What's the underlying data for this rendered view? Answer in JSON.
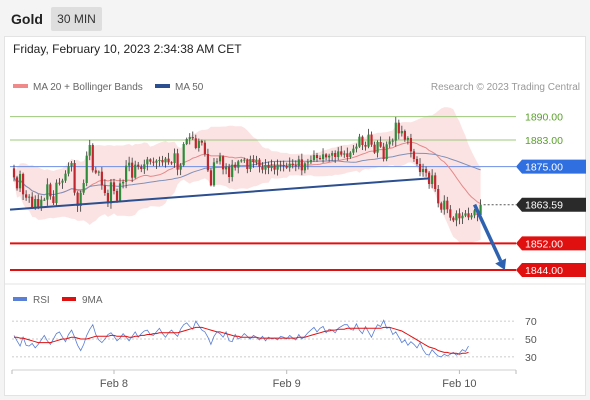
{
  "header": {
    "symbol": "Gold",
    "timeframe": "30 MIN",
    "timestamp": "Friday, February 10, 2023 2:34:38 AM CET"
  },
  "legend": {
    "ma20": {
      "label": "MA 20 + Bollinger Bands",
      "color": "#f08a8a"
    },
    "ma50": {
      "label": "MA 50",
      "color": "#2b4f8f"
    },
    "credit": "Research © 2023 Trading Central"
  },
  "rsi_legend": {
    "rsi": {
      "label": "RSI",
      "color": "#5a7fd6"
    },
    "ma9": {
      "label": "9MA",
      "color": "#e01010"
    }
  },
  "chart_data": [
    {
      "type": "candlestick",
      "title": "",
      "ylim": [
        1838,
        1895
      ],
      "x_ticks": [
        "Feb 8",
        "Feb 9",
        "Feb 10"
      ],
      "price_levels": [
        {
          "label": "1890.00",
          "value": 1890.0,
          "kind": "resistance",
          "color": "#5aa02c"
        },
        {
          "label": "1883.00",
          "value": 1883.0,
          "kind": "resistance",
          "color": "#5aa02c"
        },
        {
          "label": "1875.00",
          "value": 1875.0,
          "kind": "pivot",
          "color": "#2f6fe0"
        },
        {
          "label": "1863.59",
          "value": 1863.59,
          "kind": "last-price",
          "color": "#2a2a2a"
        },
        {
          "label": "1852.00",
          "value": 1852.0,
          "kind": "support",
          "color": "#e01010"
        },
        {
          "label": "1844.00",
          "value": 1844.0,
          "kind": "support",
          "color": "#e01010"
        }
      ],
      "trendline": {
        "start": {
          "bar": 0,
          "price": 1862.1
        },
        "end": {
          "bar": 137,
          "price": 1871.5
        }
      },
      "forecast_arrow": {
        "start": {
          "bar": 152,
          "price": 1863.6
        },
        "end": {
          "bar": 162,
          "price": 1844.0
        }
      },
      "candles": [
        [
          1874.5,
          1871.8
        ],
        [
          1871.8,
          1868.5
        ],
        [
          1868.5,
          1872.8
        ],
        [
          1872.8,
          1866.7
        ],
        [
          1866.7,
          1865.7
        ],
        [
          1865.7,
          1866.0
        ],
        [
          1866.0,
          1862.7
        ],
        [
          1862.7,
          1865.3
        ],
        [
          1865.3,
          1862.8
        ],
        [
          1862.8,
          1865.1
        ],
        [
          1865.1,
          1865.1
        ],
        [
          1865.1,
          1869.7
        ],
        [
          1869.7,
          1866.1
        ],
        [
          1866.1,
          1864.1
        ],
        [
          1864.1,
          1870.2
        ],
        [
          1870.2,
          1870.1
        ],
        [
          1870.2,
          1870.8
        ],
        [
          1870.8,
          1872.9
        ],
        [
          1872.9,
          1875.1
        ],
        [
          1875.1,
          1876.1
        ],
        [
          1876.1,
          1867.2
        ],
        [
          1867.2,
          1863.2
        ],
        [
          1863.2,
          1867.2
        ],
        [
          1867.2,
          1870.1
        ],
        [
          1870.1,
          1878.3
        ],
        [
          1878.3,
          1881.5
        ],
        [
          1881.5,
          1873.9
        ],
        [
          1873.9,
          1873.2
        ],
        [
          1873.2,
          1873.5
        ],
        [
          1873.5,
          1869.4
        ],
        [
          1869.4,
          1867.1
        ],
        [
          1867.1,
          1864.0
        ],
        [
          1864.0,
          1870.3
        ],
        [
          1870.3,
          1867.7
        ],
        [
          1867.7,
          1864.8
        ],
        [
          1864.8,
          1870.0
        ],
        [
          1870.0,
          1870.4
        ],
        [
          1870.4,
          1875.3
        ],
        [
          1875.3,
          1876.2
        ],
        [
          1876.2,
          1871.7
        ],
        [
          1871.7,
          1875.6
        ],
        [
          1875.6,
          1875.0
        ],
        [
          1875.0,
          1874.3
        ],
        [
          1874.3,
          1875.7
        ],
        [
          1875.7,
          1877.2
        ],
        [
          1877.2,
          1876.5
        ],
        [
          1876.5,
          1876.2
        ],
        [
          1876.2,
          1876.8
        ],
        [
          1876.8,
          1877.0
        ],
        [
          1877.0,
          1876.3
        ],
        [
          1876.3,
          1877.4
        ],
        [
          1877.4,
          1876.3
        ],
        [
          1876.3,
          1876.1
        ],
        [
          1876.1,
          1879.0
        ],
        [
          1879.0,
          1874.1
        ],
        [
          1874.1,
          1875.4
        ],
        [
          1875.4,
          1881.8
        ],
        [
          1881.8,
          1883.3
        ],
        [
          1883.3,
          1883.9
        ],
        [
          1883.9,
          1883.5
        ],
        [
          1883.5,
          1880.6
        ],
        [
          1880.6,
          1882.7
        ],
        [
          1882.7,
          1882.2
        ],
        [
          1882.2,
          1878.8
        ],
        [
          1878.8,
          1873.9
        ],
        [
          1873.9,
          1869.4
        ],
        [
          1869.4,
          1876.3
        ],
        [
          1876.3,
          1876.6
        ],
        [
          1876.6,
          1878.1
        ],
        [
          1878.1,
          1874.2
        ],
        [
          1874.2,
          1875.0
        ],
        [
          1875.0,
          1871.9
        ],
        [
          1871.9,
          1875.6
        ],
        [
          1875.6,
          1874.7
        ],
        [
          1874.7,
          1876.6
        ],
        [
          1876.6,
          1876.9
        ],
        [
          1876.9,
          1877.1
        ],
        [
          1877.1,
          1874.3
        ],
        [
          1874.3,
          1877.3
        ],
        [
          1877.3,
          1876.4
        ],
        [
          1876.4,
          1877.1
        ],
        [
          1877.1,
          1875.0
        ],
        [
          1875.0,
          1874.1
        ],
        [
          1874.1,
          1875.5
        ],
        [
          1875.5,
          1874.6
        ],
        [
          1874.6,
          1875.4
        ],
        [
          1875.4,
          1874.1
        ],
        [
          1874.1,
          1875.6
        ],
        [
          1875.6,
          1875.5
        ],
        [
          1875.5,
          1875.2
        ],
        [
          1875.2,
          1874.7
        ],
        [
          1874.7,
          1875.9
        ],
        [
          1875.9,
          1875.4
        ],
        [
          1875.4,
          1875.2
        ],
        [
          1875.2,
          1877.2
        ],
        [
          1877.2,
          1873.9
        ],
        [
          1873.9,
          1876.0
        ],
        [
          1876.0,
          1876.3
        ],
        [
          1876.3,
          1877.0
        ],
        [
          1877.0,
          1878.5
        ],
        [
          1878.5,
          1877.6
        ],
        [
          1877.6,
          1877.3
        ],
        [
          1877.3,
          1878.7
        ],
        [
          1878.7,
          1877.8
        ],
        [
          1877.8,
          1878.3
        ],
        [
          1878.3,
          1879.1
        ],
        [
          1879.1,
          1877.9
        ],
        [
          1877.9,
          1879.6
        ],
        [
          1879.6,
          1878.6
        ],
        [
          1878.6,
          1879.0
        ],
        [
          1879.0,
          1877.9
        ],
        [
          1877.9,
          1879.2
        ],
        [
          1879.2,
          1880.4
        ],
        [
          1880.4,
          1881.0
        ],
        [
          1881.0,
          1884.0
        ],
        [
          1884.0,
          1881.5
        ],
        [
          1881.5,
          1881.0
        ],
        [
          1881.0,
          1884.6
        ],
        [
          1884.6,
          1881.6
        ],
        [
          1881.6,
          1879.2
        ],
        [
          1879.2,
          1882.4
        ],
        [
          1882.4,
          1881.0
        ],
        [
          1881.0,
          1877.3
        ],
        [
          1877.3,
          1881.7
        ],
        [
          1881.7,
          1882.6
        ],
        [
          1882.6,
          1882.8
        ],
        [
          1882.8,
          1888.2
        ],
        [
          1888.2,
          1885.0
        ],
        [
          1885.0,
          1885.7
        ],
        [
          1885.7,
          1883.1
        ],
        [
          1883.1,
          1883.6
        ],
        [
          1883.6,
          1879.6
        ],
        [
          1879.6,
          1877.3
        ],
        [
          1877.3,
          1875.8
        ],
        [
          1875.8,
          1873.4
        ],
        [
          1873.4,
          1874.3
        ],
        [
          1874.3,
          1873.2
        ],
        [
          1873.2,
          1869.8
        ],
        [
          1869.8,
          1872.4
        ],
        [
          1872.4,
          1868.3
        ],
        [
          1868.3,
          1864.0
        ],
        [
          1864.0,
          1862.1
        ],
        [
          1862.1,
          1864.8
        ],
        [
          1864.8,
          1862.2
        ],
        [
          1862.2,
          1859.7
        ],
        [
          1859.7,
          1858.9
        ],
        [
          1858.9,
          1861.0
        ],
        [
          1861.0,
          1859.5
        ],
        [
          1859.5,
          1860.3
        ],
        [
          1860.3,
          1861.0
        ],
        [
          1861.0,
          1859.8
        ],
        [
          1859.8,
          1860.4
        ],
        [
          1860.4,
          1861.9
        ],
        [
          1861.9,
          1860.5
        ],
        [
          1860.5,
          1863.6
        ]
      ]
    },
    {
      "type": "line",
      "title": "RSI",
      "ylim": [
        22,
        78
      ],
      "y_ticks": [
        70,
        50,
        30
      ],
      "series": [
        {
          "name": "RSI",
          "values": [
            54,
            48,
            42,
            52,
            43,
            42,
            45,
            40,
            44,
            49,
            54,
            48,
            44,
            50,
            56,
            58,
            52,
            47,
            55,
            60,
            52,
            43,
            37,
            44,
            54,
            61,
            66,
            55,
            49,
            46,
            50,
            55,
            57,
            53,
            48,
            51,
            56,
            52,
            48,
            53,
            58,
            52,
            56,
            59,
            60,
            55,
            54,
            58,
            62,
            56,
            52,
            57,
            60,
            56,
            53,
            61,
            66,
            68,
            64,
            61,
            70,
            65,
            60,
            58,
            52,
            44,
            53,
            58,
            56,
            52,
            58,
            48,
            47,
            55,
            50,
            52,
            56,
            53,
            50,
            54,
            52,
            49,
            53,
            48,
            52,
            50,
            51,
            49,
            53,
            52,
            50,
            54,
            51,
            49,
            55,
            50,
            53,
            57,
            60,
            63,
            58,
            62,
            64,
            57,
            61,
            60,
            57,
            62,
            64,
            66,
            66,
            61,
            60,
            67,
            60,
            56,
            64,
            58,
            52,
            60,
            66,
            64,
            71,
            62,
            63,
            55,
            58,
            52,
            46,
            49,
            43,
            47,
            44,
            40,
            46,
            38,
            33,
            32,
            38,
            34,
            31,
            30,
            33,
            31,
            33,
            35,
            32,
            34,
            38,
            36,
            42
          ]
        },
        {
          "name": "9MA",
          "values": [
            52,
            52,
            51,
            51,
            50,
            49,
            48,
            47,
            46,
            46,
            46,
            46,
            46,
            47,
            48,
            49,
            50,
            50,
            51,
            52,
            52,
            51,
            50,
            50,
            50,
            51,
            52,
            53,
            53,
            53,
            53,
            53,
            54,
            54,
            53,
            53,
            53,
            53,
            52,
            52,
            53,
            53,
            54,
            54,
            55,
            55,
            56,
            56,
            57,
            57,
            57,
            57,
            57,
            57,
            57,
            58,
            59,
            60,
            61,
            62,
            63,
            63,
            63,
            62,
            61,
            60,
            59,
            58,
            58,
            57,
            56,
            55,
            54,
            53,
            53,
            52,
            52,
            52,
            52,
            52,
            52,
            51,
            51,
            51,
            51,
            51,
            51,
            51,
            51,
            51,
            51,
            51,
            51,
            51,
            52,
            52,
            52,
            53,
            54,
            55,
            56,
            57,
            58,
            59,
            59,
            60,
            60,
            61,
            61,
            61,
            62,
            62,
            62,
            62,
            62,
            62,
            62,
            62,
            62,
            62,
            62,
            62,
            63,
            63,
            63,
            62,
            61,
            60,
            59,
            57,
            55,
            53,
            51,
            49,
            47,
            45,
            43,
            41,
            40,
            39,
            37,
            36,
            35,
            35,
            34,
            34,
            34,
            33,
            34,
            34,
            35
          ]
        }
      ]
    }
  ]
}
